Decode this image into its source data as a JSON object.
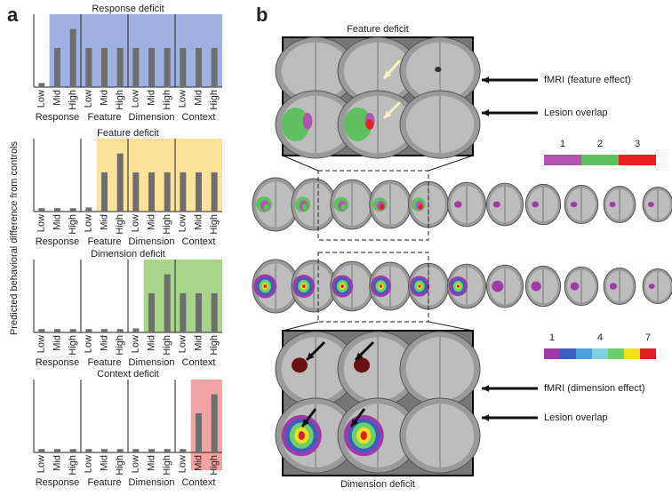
{
  "panel_a_label": "a",
  "panel_b_label": "b",
  "y_label": "Predicted behavioral difference from controls",
  "chart_data": [
    {
      "type": "bar",
      "title": "Response deficit",
      "categories": [
        "Low",
        "Mid",
        "High",
        "Low",
        "Mid",
        "High",
        "Low",
        "Mid",
        "High",
        "Low",
        "Mid",
        "High"
      ],
      "groups": [
        "Response",
        "Feature",
        "Dimension",
        "Context"
      ],
      "values": [
        0.06,
        0.58,
        0.86,
        0.58,
        0.58,
        0.58,
        0.58,
        0.58,
        0.58,
        0.58,
        0.58,
        0.58
      ],
      "color": "#6e6e6e",
      "ylim": [
        0,
        1
      ],
      "shade_color": "#9fb1e0",
      "shade_start": 1
    },
    {
      "type": "bar",
      "title": "Feature deficit",
      "categories": [
        "Low",
        "Mid",
        "High",
        "Low",
        "Mid",
        "High",
        "Low",
        "Mid",
        "High",
        "Low",
        "Mid",
        "High"
      ],
      "groups": [
        "Response",
        "Feature",
        "Dimension",
        "Context"
      ],
      "values": [
        0.05,
        0.05,
        0.05,
        0.06,
        0.58,
        0.86,
        0.58,
        0.58,
        0.58,
        0.58,
        0.58,
        0.58
      ],
      "color": "#6e6e6e",
      "ylim": [
        0,
        1
      ],
      "shade_color": "#fde29a",
      "shade_start": 4
    },
    {
      "type": "bar",
      "title": "Dimension deficit",
      "categories": [
        "Low",
        "Mid",
        "High",
        "Low",
        "Mid",
        "High",
        "Low",
        "Mid",
        "High",
        "Low",
        "Mid",
        "High"
      ],
      "groups": [
        "Response",
        "Feature",
        "Dimension",
        "Context"
      ],
      "values": [
        0.05,
        0.05,
        0.05,
        0.05,
        0.05,
        0.05,
        0.06,
        0.58,
        0.86,
        0.58,
        0.58,
        0.58
      ],
      "color": "#6e6e6e",
      "ylim": [
        0,
        1
      ],
      "shade_color": "#a9d58a",
      "shade_start": 7
    },
    {
      "type": "bar",
      "title": "Context deficit",
      "categories": [
        "Low",
        "Mid",
        "High",
        "Low",
        "Mid",
        "High",
        "Low",
        "Mid",
        "High",
        "Low",
        "Mid",
        "High"
      ],
      "groups": [
        "Response",
        "Feature",
        "Dimension",
        "Context"
      ],
      "values": [
        0.05,
        0.05,
        0.05,
        0.05,
        0.05,
        0.05,
        0.05,
        0.05,
        0.05,
        0.05,
        0.58,
        0.86
      ],
      "color": "#6e6e6e",
      "ylim": [
        0,
        1
      ],
      "shade_color": "#f4a3a3",
      "shade_start": 10
    }
  ],
  "panel_b": {
    "top_title": "Feature deficit",
    "top_fmri": "fMRI (feature effect)",
    "top_lesion": "Lesion overlap",
    "top_scale": [
      "1",
      "2",
      "3"
    ],
    "bottom_scale": [
      "1",
      "4",
      "7"
    ],
    "bottom_title": "Dimension deficit",
    "bottom_fmri": "fMRI (dimension effect)",
    "bottom_lesion": "Lesion overlap"
  }
}
